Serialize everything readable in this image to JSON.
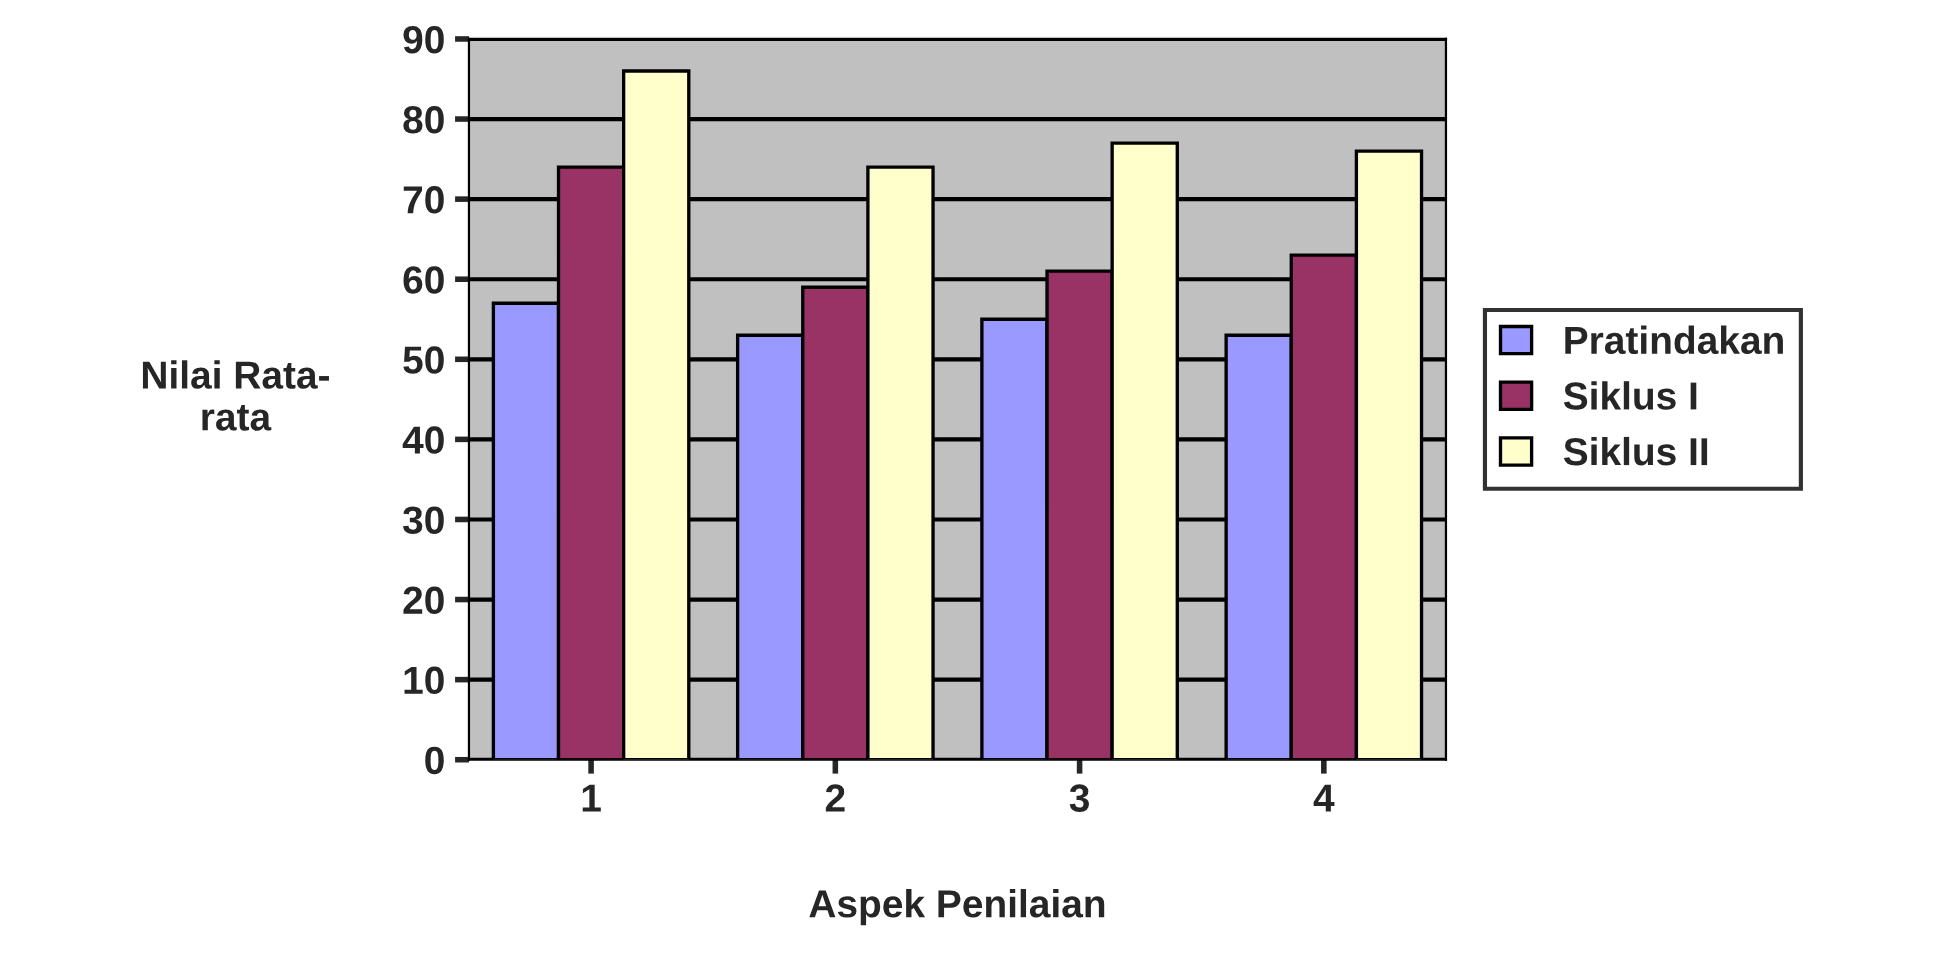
{
  "chart_data": {
    "type": "bar",
    "xlabel": "Aspek Penilaian",
    "ylabel": "Nilai Rata-\nrata",
    "categories": [
      "1",
      "2",
      "3",
      "4"
    ],
    "series": [
      {
        "name": "Pratindakan",
        "color": "#9999ff",
        "values": [
          57,
          53,
          55,
          53
        ]
      },
      {
        "name": "Siklus I",
        "color": "#993366",
        "values": [
          74,
          59,
          61,
          63
        ]
      },
      {
        "name": "Siklus II",
        "color": "#ffffcc",
        "values": [
          86,
          74,
          77,
          76
        ]
      }
    ],
    "ylim": [
      0,
      90
    ],
    "yticks": [
      0,
      10,
      20,
      30,
      40,
      50,
      60,
      70,
      80,
      90
    ],
    "grid": "y",
    "legend": "right"
  }
}
